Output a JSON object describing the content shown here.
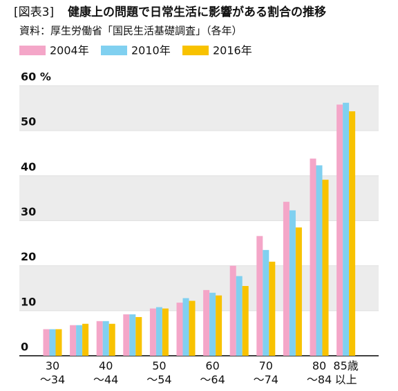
{
  "chart_data": {
    "type": "bar",
    "figure_label": "[図表3]",
    "title": "健康上の問題で日常生活に影響がある割合の推移",
    "subtitle": "資料：厚生労働省「国民生活基礎調査」（各年）",
    "categories": [
      "30\n～34",
      null,
      "40\n～44",
      null,
      "50\n～54",
      null,
      "60\n～64",
      null,
      "70\n～74",
      null,
      "80\n～84",
      "85歳\n以上"
    ],
    "series": [
      {
        "name": "2004年",
        "color": "#f4a6c8",
        "values": [
          5.9,
          6.8,
          7.7,
          9.2,
          10.5,
          11.8,
          14.6,
          20.0,
          26.6,
          34.2,
          43.8,
          55.8
        ]
      },
      {
        "name": "2010年",
        "color": "#80d0f0",
        "values": [
          5.9,
          6.8,
          7.7,
          9.2,
          10.8,
          12.8,
          14.0,
          17.7,
          23.5,
          32.3,
          42.3,
          56.2
        ]
      },
      {
        "name": "2016年",
        "color": "#f8c200",
        "values": [
          5.9,
          7.1,
          7.1,
          8.6,
          10.5,
          12.2,
          13.4,
          15.5,
          20.9,
          28.5,
          39.1,
          54.3
        ]
      }
    ],
    "ylim": [
      0,
      60
    ],
    "yticks": [
      0,
      10,
      20,
      30,
      40,
      50,
      {
        "value": 60,
        "label": "60 %"
      }
    ],
    "grid": "bands"
  }
}
